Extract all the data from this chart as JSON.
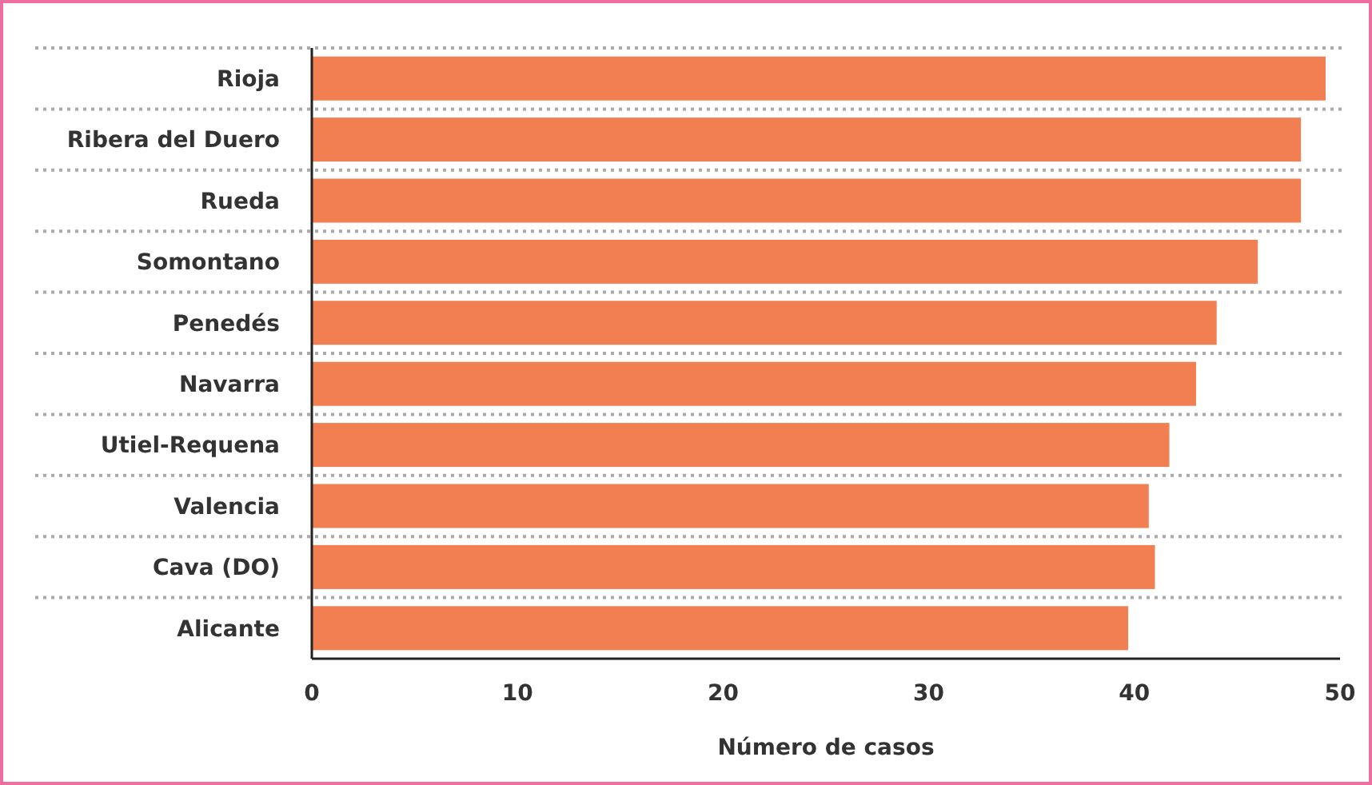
{
  "chart_data": {
    "type": "bar",
    "orientation": "horizontal",
    "xlabel": "Número de casos",
    "categories": [
      "Rioja",
      "Ribera del Duero",
      "Rueda",
      "Somontano",
      "Penedés",
      "Navarra",
      "Utiel-Requena",
      "Valencia",
      "Cava (DO)",
      "Alicante"
    ],
    "values": [
      49.3,
      48.1,
      48.1,
      46.0,
      44.0,
      43.0,
      41.7,
      40.7,
      41.0,
      39.7
    ],
    "color": "#f27f51",
    "xlim": [
      0,
      50
    ],
    "xticks": [
      0,
      10,
      20,
      30,
      40,
      50
    ],
    "grid": "y"
  }
}
